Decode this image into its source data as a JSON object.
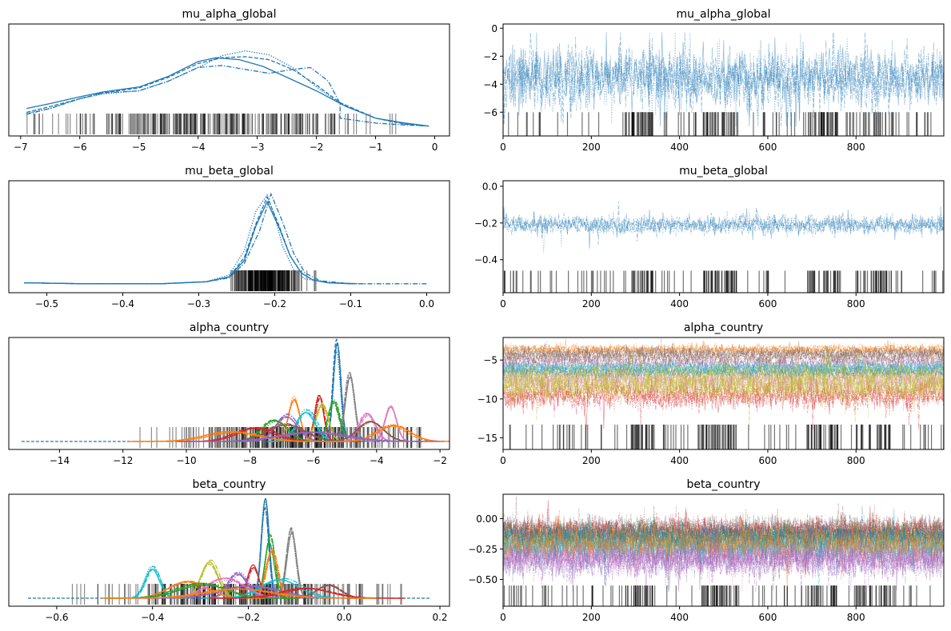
{
  "chart_data": [
    {
      "type": "line",
      "panel": "density",
      "title": "mu_alpha_global",
      "xlim": [
        -7.2,
        0.25
      ],
      "x_ticks": [
        -7,
        -6,
        -5,
        -4,
        -3,
        -2,
        -1,
        0
      ],
      "x_tick_labels": [
        "−7",
        "−6",
        "−5",
        "−4",
        "−3",
        "−2",
        "−1",
        "0"
      ],
      "yaxis_visible": false,
      "color": "#1f77b4",
      "series": [
        {
          "linestyle": "solid",
          "x": [
            -6.9,
            -6.5,
            -6.0,
            -5.6,
            -5.0,
            -4.5,
            -4.0,
            -3.7,
            -3.3,
            -2.9,
            -2.5,
            -2.0,
            -1.5,
            -1.0,
            -0.5,
            -0.1
          ],
          "y": [
            0.2,
            0.25,
            0.32,
            0.37,
            0.42,
            0.53,
            0.68,
            0.72,
            0.7,
            0.63,
            0.52,
            0.38,
            0.22,
            0.1,
            0.05,
            0.02
          ]
        },
        {
          "linestyle": "dashed",
          "x": [
            -6.9,
            -6.5,
            -6.0,
            -5.6,
            -5.0,
            -4.5,
            -4.0,
            -3.6,
            -3.2,
            -2.8,
            -2.4,
            -2.0,
            -1.6,
            -1.0,
            -0.5,
            -0.1
          ],
          "y": [
            0.16,
            0.22,
            0.3,
            0.36,
            0.41,
            0.52,
            0.66,
            0.72,
            0.73,
            0.7,
            0.6,
            0.44,
            0.26,
            0.1,
            0.04,
            0.02
          ]
        },
        {
          "linestyle": "dotted",
          "x": [
            -6.9,
            -6.5,
            -6.0,
            -5.6,
            -5.0,
            -4.5,
            -4.0,
            -3.6,
            -3.2,
            -2.8,
            -2.4,
            -2.0,
            -1.6,
            -1.0,
            -0.5,
            -0.1
          ],
          "y": [
            0.15,
            0.2,
            0.3,
            0.35,
            0.38,
            0.48,
            0.62,
            0.74,
            0.79,
            0.75,
            0.62,
            0.42,
            0.25,
            0.1,
            0.04,
            0.02
          ]
        },
        {
          "linestyle": "dashdot",
          "x": [
            -6.9,
            -6.5,
            -6.0,
            -5.6,
            -5.0,
            -4.5,
            -4.0,
            -3.6,
            -3.2,
            -2.8,
            -2.4,
            -2.1,
            -1.8,
            -1.6,
            -1.6,
            -1.0,
            -0.5,
            -0.1
          ],
          "y": [
            0.14,
            0.2,
            0.3,
            0.36,
            0.38,
            0.48,
            0.62,
            0.64,
            0.6,
            0.56,
            0.6,
            0.62,
            0.48,
            0.25,
            0.1,
            0.05,
            0.03,
            0.02
          ]
        }
      ],
      "rug": {
        "xmin": -6.9,
        "xmax": -0.4,
        "center": -3.8,
        "spread": 1.4
      }
    },
    {
      "type": "line",
      "panel": "trace",
      "title": "mu_alpha_global",
      "xlim": [
        0,
        999
      ],
      "ylim": [
        -7.7,
        0.3
      ],
      "x_ticks": [
        0,
        200,
        400,
        600,
        800
      ],
      "x_tick_labels": [
        "0",
        "200",
        "400",
        "600",
        "800"
      ],
      "y_ticks": [
        -6,
        -4,
        -2,
        0
      ],
      "y_tick_labels": [
        "−6",
        "−4",
        "−2",
        "0"
      ],
      "n_draws": 1000,
      "n_chains": 4,
      "center": [
        -3.6
      ],
      "spread": [
        1.1
      ],
      "lo": -7.0,
      "hi": -0.3,
      "colors": [
        "#1f77b4"
      ],
      "rug_band": [
        -7.7,
        -6.0
      ],
      "rug_clusters": [
        [
          290,
          340
        ],
        [
          450,
          530
        ],
        [
          690,
          760
        ],
        [
          800,
          880
        ]
      ]
    },
    {
      "type": "line",
      "panel": "density",
      "title": "mu_beta_global",
      "xlim": [
        -0.55,
        0.03
      ],
      "x_ticks": [
        -0.5,
        -0.4,
        -0.3,
        -0.2,
        -0.1,
        0.0
      ],
      "x_tick_labels": [
        "−0.5",
        "−0.4",
        "−0.3",
        "−0.2",
        "−0.1",
        "0.0"
      ],
      "yaxis_visible": false,
      "color": "#1f77b4",
      "series": [
        {
          "linestyle": "solid",
          "x": [
            -0.53,
            -0.45,
            -0.35,
            -0.29,
            -0.26,
            -0.24,
            -0.225,
            -0.21,
            -0.195,
            -0.18,
            -0.165,
            -0.15,
            -0.13,
            -0.1
          ],
          "y": [
            0.02,
            0.01,
            0.01,
            0.03,
            0.08,
            0.25,
            0.6,
            0.85,
            0.6,
            0.3,
            0.12,
            0.05,
            0.02,
            0.01
          ]
        },
        {
          "linestyle": "dashed",
          "x": [
            -0.53,
            -0.45,
            -0.35,
            -0.29,
            -0.26,
            -0.24,
            -0.225,
            -0.21,
            -0.195,
            -0.18,
            -0.165,
            -0.15,
            -0.13,
            -0.09
          ],
          "y": [
            0.02,
            0.01,
            0.01,
            0.03,
            0.08,
            0.28,
            0.62,
            0.9,
            0.62,
            0.3,
            0.12,
            0.05,
            0.02,
            0.01
          ]
        },
        {
          "linestyle": "dotted",
          "x": [
            -0.53,
            -0.45,
            -0.35,
            -0.29,
            -0.26,
            -0.24,
            -0.225,
            -0.21,
            -0.2,
            -0.19,
            -0.175,
            -0.16,
            -0.13,
            -0.08
          ],
          "y": [
            0.02,
            0.01,
            0.01,
            0.03,
            0.1,
            0.35,
            0.75,
            0.92,
            0.7,
            0.4,
            0.15,
            0.06,
            0.02,
            0.01
          ]
        },
        {
          "linestyle": "dashdot",
          "x": [
            -0.53,
            -0.45,
            -0.35,
            -0.29,
            -0.26,
            -0.24,
            -0.22,
            -0.205,
            -0.19,
            -0.175,
            -0.16,
            -0.14,
            -0.1,
            0.0
          ],
          "y": [
            0.02,
            0.01,
            0.01,
            0.03,
            0.07,
            0.22,
            0.55,
            0.93,
            0.65,
            0.32,
            0.12,
            0.04,
            0.01,
            0.01
          ]
        }
      ],
      "rug": {
        "xmin": -0.32,
        "xmax": -0.12,
        "center": -0.21,
        "spread": 0.025
      }
    },
    {
      "type": "line",
      "panel": "trace",
      "title": "mu_beta_global",
      "xlim": [
        0,
        999
      ],
      "ylim": [
        -0.58,
        0.03
      ],
      "x_ticks": [
        0,
        200,
        400,
        600,
        800
      ],
      "x_tick_labels": [
        "0",
        "200",
        "400",
        "600",
        "800"
      ],
      "y_ticks": [
        -0.4,
        -0.2,
        0.0
      ],
      "y_tick_labels": [
        "−0.4",
        "−0.2",
        "0.0"
      ],
      "n_draws": 1000,
      "n_chains": 4,
      "center": [
        -0.21
      ],
      "spread": [
        0.025
      ],
      "lo": -0.5,
      "hi": 0.0,
      "colors": [
        "#1f77b4"
      ],
      "rug_band": [
        -0.58,
        -0.46
      ],
      "rug_clusters": [
        [
          290,
          340
        ],
        [
          450,
          530
        ],
        [
          690,
          760
        ],
        [
          800,
          880
        ]
      ]
    },
    {
      "type": "line",
      "panel": "density-multi",
      "title": "alpha_country",
      "xlim": [
        -15.6,
        -1.7
      ],
      "x_ticks": [
        -14,
        -12,
        -10,
        -8,
        -6,
        -4,
        -2
      ],
      "x_tick_labels": [
        "−14",
        "−12",
        "−10",
        "−8",
        "−6",
        "−4",
        "−2"
      ],
      "yaxis_visible": false,
      "baseline_range": [
        -15.2,
        -2.3
      ],
      "components": [
        {
          "mu": -5.25,
          "sd": 0.12,
          "height": 1.0,
          "color": "#1f77b4"
        },
        {
          "mu": -4.85,
          "sd": 0.15,
          "height": 0.72,
          "color": "#7f7f7f"
        },
        {
          "mu": -5.8,
          "sd": 0.14,
          "height": 0.46,
          "color": "#d62728"
        },
        {
          "mu": -6.6,
          "sd": 0.18,
          "height": 0.45,
          "color": "#ff7f0e"
        },
        {
          "mu": -5.35,
          "sd": 0.18,
          "height": 0.42,
          "color": "#2ca02c"
        },
        {
          "mu": -5.7,
          "sd": 0.2,
          "height": 0.38,
          "color": "#bcbd22"
        },
        {
          "mu": -3.55,
          "sd": 0.18,
          "height": 0.38,
          "color": "#e377c2"
        },
        {
          "mu": -6.2,
          "sd": 0.3,
          "height": 0.32,
          "color": "#17becf"
        },
        {
          "mu": -4.3,
          "sd": 0.25,
          "height": 0.28,
          "color": "#e377c2"
        },
        {
          "mu": -6.8,
          "sd": 0.35,
          "height": 0.27,
          "color": "#9467bd"
        },
        {
          "mu": -7.2,
          "sd": 0.4,
          "height": 0.22,
          "color": "#2ca02c"
        },
        {
          "mu": -6.9,
          "sd": 0.6,
          "height": 0.18,
          "color": "#8c564b"
        },
        {
          "mu": -4.2,
          "sd": 0.4,
          "height": 0.2,
          "color": "#8c564b"
        },
        {
          "mu": -7.8,
          "sd": 0.6,
          "height": 0.14,
          "color": "#d62728"
        },
        {
          "mu": -3.5,
          "sd": 0.5,
          "height": 0.17,
          "color": "#ff7f0e"
        },
        {
          "mu": -8.5,
          "sd": 0.8,
          "height": 0.1,
          "color": "#ff7f0e"
        },
        {
          "mu": -6.0,
          "sd": 1.0,
          "height": 0.1,
          "color": "#9467bd"
        }
      ],
      "rug": {
        "xmin": -13.5,
        "xmax": -2.6,
        "center": -6.5,
        "spread": 2.0
      }
    },
    {
      "type": "line",
      "panel": "trace-multi",
      "title": "alpha_country",
      "xlim": [
        0,
        999
      ],
      "ylim": [
        -16.5,
        -2.1
      ],
      "x_ticks": [
        0,
        200,
        400,
        600,
        800
      ],
      "x_tick_labels": [
        "0",
        "200",
        "400",
        "600",
        "800"
      ],
      "y_ticks": [
        -15,
        -10,
        -5
      ],
      "y_tick_labels": [
        "−15",
        "−10",
        "−5"
      ],
      "n_draws": 1000,
      "n_chains": 4,
      "center": [
        -4.0,
        -9.5,
        -7.5,
        -5.5,
        -6.5,
        -8.5,
        -3.6,
        -6.0,
        -4.5,
        -7.0
      ],
      "spread": [
        0.4,
        0.9,
        0.8,
        0.5,
        0.4,
        0.8,
        0.3,
        0.4,
        0.5,
        0.9
      ],
      "lo": -14.0,
      "hi": -2.3,
      "colors": [
        "#7f7f7f",
        "#d62728",
        "#e377c2",
        "#9467bd",
        "#1f77b4",
        "#bcbd22",
        "#ff7f0e",
        "#17becf",
        "#8c564b",
        "#bcbd22"
      ],
      "rug_band": [
        -16.5,
        -13.3
      ],
      "rug_clusters": [
        [
          290,
          340
        ],
        [
          450,
          530
        ],
        [
          690,
          760
        ],
        [
          800,
          880
        ]
      ]
    },
    {
      "type": "line",
      "panel": "density-multi",
      "title": "beta_country",
      "xlim": [
        -0.7,
        0.22
      ],
      "x_ticks": [
        -0.6,
        -0.4,
        -0.2,
        0.0,
        0.2
      ],
      "x_tick_labels": [
        "−0.6",
        "−0.4",
        "−0.2",
        "0.0",
        "0.2"
      ],
      "yaxis_visible": false,
      "baseline_range": [
        -0.66,
        0.18
      ],
      "components": [
        {
          "mu": -0.165,
          "sd": 0.008,
          "height": 1.0,
          "color": "#1f77b4"
        },
        {
          "mu": -0.11,
          "sd": 0.01,
          "height": 0.72,
          "color": "#7f7f7f"
        },
        {
          "mu": -0.155,
          "sd": 0.01,
          "height": 0.62,
          "color": "#2ca02c"
        },
        {
          "mu": -0.15,
          "sd": 0.012,
          "height": 0.5,
          "color": "#ff7f0e"
        },
        {
          "mu": -0.4,
          "sd": 0.015,
          "height": 0.32,
          "color": "#17becf"
        },
        {
          "mu": -0.28,
          "sd": 0.018,
          "height": 0.38,
          "color": "#bcbd22"
        },
        {
          "mu": -0.19,
          "sd": 0.012,
          "height": 0.33,
          "color": "#d62728"
        },
        {
          "mu": -0.22,
          "sd": 0.02,
          "height": 0.26,
          "color": "#9467bd"
        },
        {
          "mu": -0.33,
          "sd": 0.04,
          "height": 0.18,
          "color": "#ff7f0e"
        },
        {
          "mu": -0.25,
          "sd": 0.04,
          "height": 0.2,
          "color": "#e377c2"
        },
        {
          "mu": -0.13,
          "sd": 0.04,
          "height": 0.2,
          "color": "#17becf"
        },
        {
          "mu": -0.03,
          "sd": 0.025,
          "height": 0.14,
          "color": "#8c564b"
        },
        {
          "mu": -0.3,
          "sd": 0.05,
          "height": 0.15,
          "color": "#2ca02c"
        },
        {
          "mu": -0.2,
          "sd": 0.06,
          "height": 0.12,
          "color": "#9467bd"
        },
        {
          "mu": -0.08,
          "sd": 0.05,
          "height": 0.1,
          "color": "#d62728"
        },
        {
          "mu": -0.22,
          "sd": 0.07,
          "height": 0.1,
          "color": "#ff7f0e"
        }
      ],
      "rug": {
        "xmin": -0.57,
        "xmax": 0.12,
        "center": -0.22,
        "spread": 0.13
      }
    },
    {
      "type": "line",
      "panel": "trace-multi",
      "title": "beta_country",
      "xlim": [
        0,
        999
      ],
      "ylim": [
        -0.72,
        0.2
      ],
      "x_ticks": [
        0,
        200,
        400,
        600,
        800
      ],
      "x_tick_labels": [
        "0",
        "200",
        "400",
        "600",
        "800"
      ],
      "y_ticks": [
        -0.5,
        -0.25,
        0.0
      ],
      "y_tick_labels": [
        "−0.50",
        "−0.25",
        "0.00"
      ],
      "n_draws": 1000,
      "n_chains": 4,
      "center": [
        -0.08,
        -0.1,
        -0.12,
        -0.18,
        -0.28,
        -0.3,
        -0.22,
        -0.15,
        -0.2,
        -0.35
      ],
      "spread": [
        0.05,
        0.05,
        0.06,
        0.06,
        0.06,
        0.07,
        0.06,
        0.05,
        0.06,
        0.07
      ],
      "lo": -0.6,
      "hi": 0.18,
      "colors": [
        "#7f7f7f",
        "#d62728",
        "#8c564b",
        "#2ca02c",
        "#9467bd",
        "#e377c2",
        "#17becf",
        "#1f77b4",
        "#ff7f0e",
        "#9467bd"
      ],
      "rug_band": [
        -0.72,
        -0.55
      ],
      "rug_clusters": [
        [
          290,
          340
        ],
        [
          450,
          530
        ],
        [
          690,
          760
        ],
        [
          800,
          880
        ]
      ]
    }
  ]
}
